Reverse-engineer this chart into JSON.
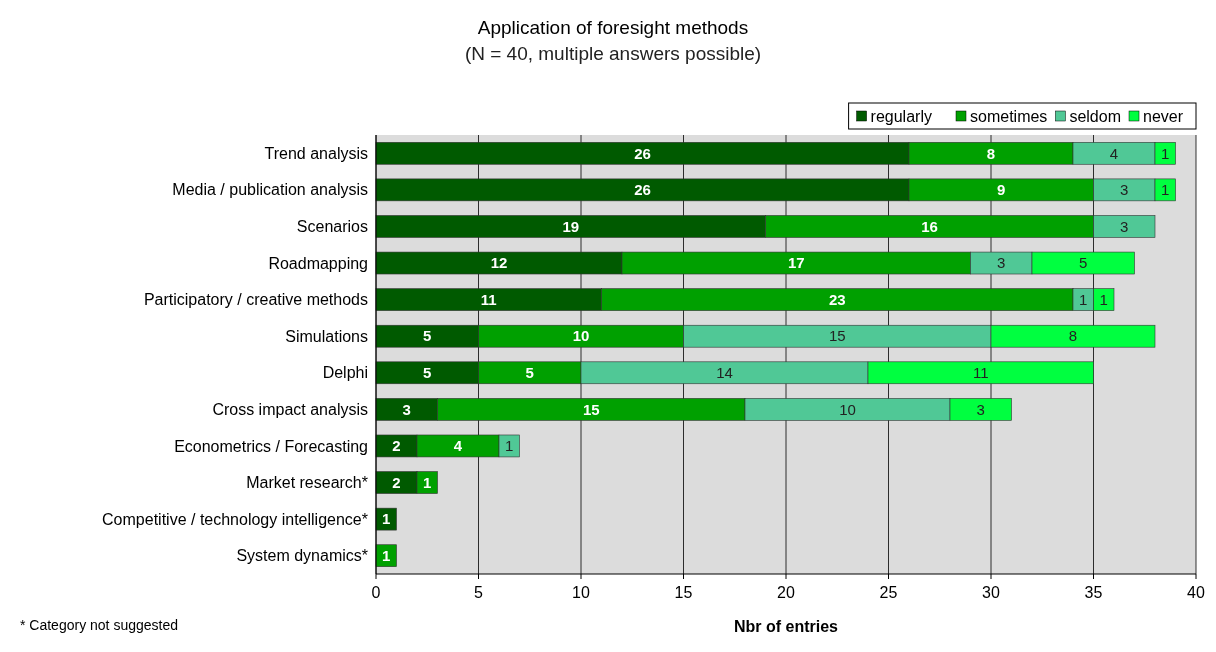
{
  "chart_data": {
    "type": "bar",
    "orientation": "horizontal",
    "stacked": true,
    "title": "Application of foresight methods",
    "subtitle": "(N = 40, multiple answers possible)",
    "xlabel": "Nbr of entries",
    "categories": [
      "Trend analysis",
      "Media / publication analysis",
      "Scenarios",
      "Roadmapping",
      "Participatory / creative methods",
      "Simulations",
      "Delphi",
      "Cross impact analysis",
      "Econometrics / Forecasting",
      "Market research*",
      "Competitive / technology intelligence*",
      "System dynamics*"
    ],
    "series": [
      {
        "name": "regularly",
        "color": "#005a00",
        "values": [
          26,
          26,
          19,
          12,
          11,
          5,
          5,
          3,
          2,
          2,
          1,
          null
        ]
      },
      {
        "name": "sometimes",
        "color": "#00a000",
        "values": [
          8,
          9,
          16,
          17,
          23,
          10,
          5,
          15,
          4,
          1,
          null,
          1
        ]
      },
      {
        "name": "seldom",
        "color": "#50c896",
        "values": [
          4,
          3,
          3,
          3,
          1,
          15,
          14,
          10,
          1,
          null,
          null,
          null
        ]
      },
      {
        "name": "never",
        "color": "#00ff40",
        "values": [
          1,
          1,
          null,
          5,
          1,
          8,
          11,
          3,
          null,
          null,
          null,
          null
        ]
      }
    ],
    "xlim": [
      0,
      40
    ],
    "xticks": [
      0,
      5,
      10,
      15,
      20,
      25,
      30,
      35,
      40
    ],
    "grid": "x",
    "legend": "top right",
    "data_labels": true,
    "annotations": [
      "* Category not suggested"
    ]
  }
}
